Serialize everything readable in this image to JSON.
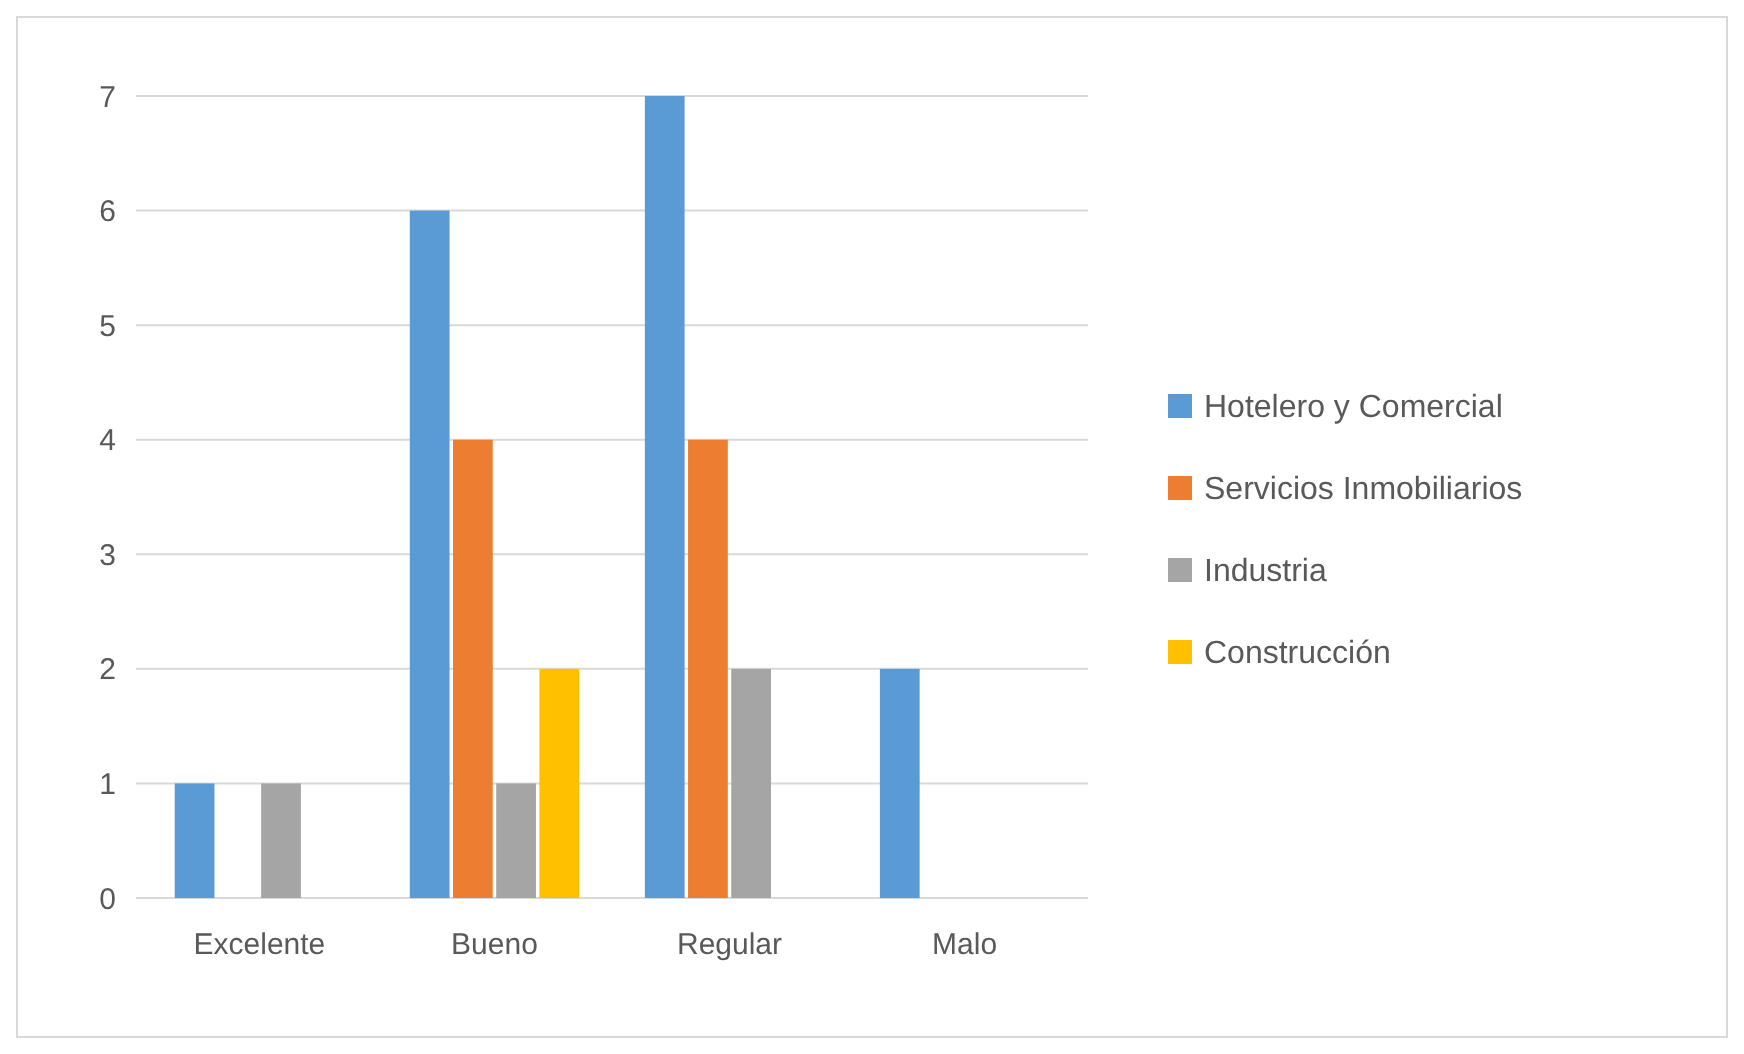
{
  "chart_data": {
    "type": "bar",
    "categories": [
      "Excelente",
      "Bueno",
      "Regular",
      "Malo"
    ],
    "series": [
      {
        "name": "Hotelero y Comercial",
        "color": "#5b9bd5",
        "values": [
          1,
          6,
          7,
          2
        ]
      },
      {
        "name": "Servicios Inmobiliarios",
        "color": "#ed7d31",
        "values": [
          0,
          4,
          4,
          0
        ]
      },
      {
        "name": "Industria",
        "color": "#a5a5a5",
        "values": [
          1,
          1,
          2,
          0
        ]
      },
      {
        "name": "Construcción",
        "color": "#ffc000",
        "values": [
          0,
          2,
          0,
          0
        ]
      }
    ],
    "ylim": [
      0,
      7
    ],
    "yticks": [
      0,
      1,
      2,
      3,
      4,
      5,
      6,
      7
    ],
    "grid": "y",
    "legend": "right"
  }
}
